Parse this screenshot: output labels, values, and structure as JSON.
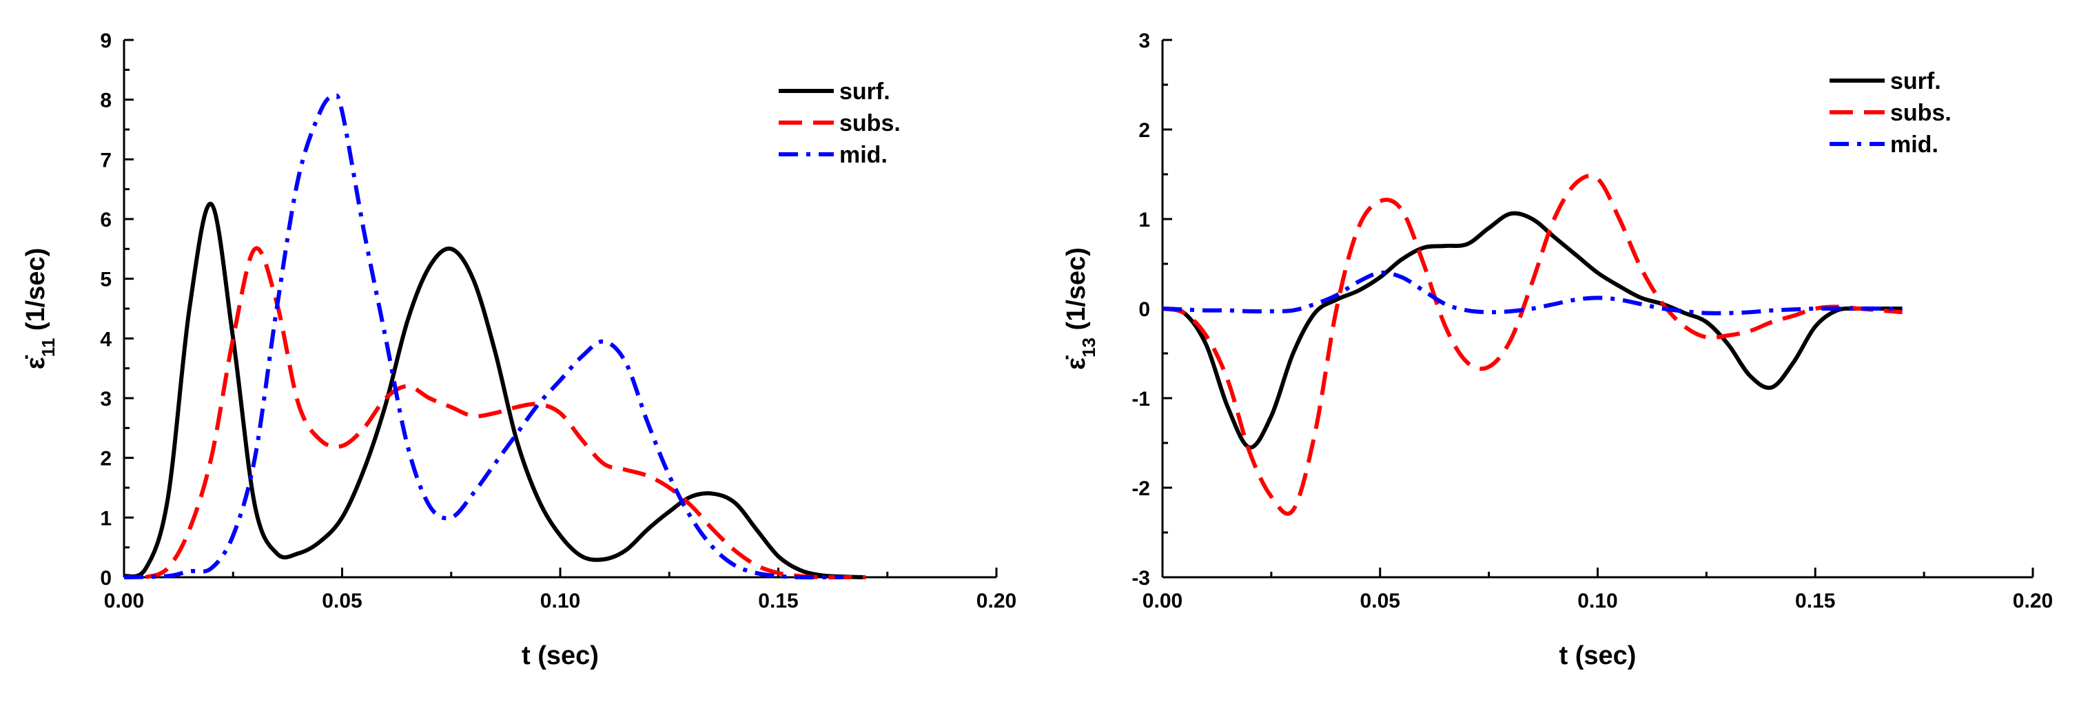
{
  "chart_data": [
    {
      "type": "line",
      "id": "left",
      "xlabel": "t (sec)",
      "ylabel": {
        "prefix": "ε̇",
        "sub": "11",
        "suffix": " (1/sec)"
      },
      "xlim": [
        0,
        0.2
      ],
      "ylim": [
        0,
        9
      ],
      "xticks": [
        0,
        0.05,
        0.1,
        0.15,
        0.2
      ],
      "xtick_labels": [
        "0.00",
        "0.05",
        "0.10",
        "0.15",
        "0.20"
      ],
      "yticks": [
        0,
        1,
        2,
        3,
        4,
        5,
        6,
        7,
        8,
        9
      ],
      "ytick_labels": [
        "0",
        "1",
        "2",
        "3",
        "4",
        "5",
        "6",
        "7",
        "8",
        "9"
      ],
      "legend_position": "top-right",
      "series": [
        {
          "name": "surf.",
          "color": "#000000",
          "dash": "solid",
          "x": [
            0,
            0.005,
            0.01,
            0.015,
            0.02,
            0.025,
            0.03,
            0.035,
            0.04,
            0.045,
            0.05,
            0.055,
            0.06,
            0.065,
            0.07,
            0.075,
            0.08,
            0.085,
            0.09,
            0.095,
            0.1,
            0.105,
            0.11,
            0.115,
            0.12,
            0.125,
            0.13,
            0.135,
            0.14,
            0.145,
            0.15,
            0.155,
            0.16,
            0.165,
            0.17
          ],
          "y": [
            0.02,
            0.15,
            1.3,
            4.5,
            6.25,
            4.0,
            1.2,
            0.4,
            0.4,
            0.6,
            1.0,
            1.8,
            2.9,
            4.3,
            5.2,
            5.5,
            5.0,
            3.8,
            2.3,
            1.3,
            0.7,
            0.35,
            0.3,
            0.45,
            0.8,
            1.1,
            1.35,
            1.4,
            1.25,
            0.8,
            0.35,
            0.12,
            0.03,
            0.01,
            0.0
          ]
        },
        {
          "name": "subs.",
          "color": "#ff0000",
          "dash": "dashed",
          "x": [
            0.005,
            0.01,
            0.015,
            0.02,
            0.025,
            0.03,
            0.035,
            0.04,
            0.045,
            0.05,
            0.055,
            0.06,
            0.065,
            0.07,
            0.075,
            0.08,
            0.085,
            0.09,
            0.095,
            0.1,
            0.105,
            0.11,
            0.115,
            0.12,
            0.125,
            0.13,
            0.135,
            0.14,
            0.145,
            0.15,
            0.155,
            0.16,
            0.165,
            0.17
          ],
          "y": [
            0.0,
            0.15,
            0.8,
            2.0,
            4.0,
            5.5,
            4.6,
            2.9,
            2.3,
            2.2,
            2.5,
            3.0,
            3.2,
            3.0,
            2.85,
            2.7,
            2.75,
            2.85,
            2.9,
            2.75,
            2.3,
            1.9,
            1.8,
            1.7,
            1.5,
            1.2,
            0.8,
            0.45,
            0.2,
            0.07,
            0.02,
            0.0,
            0.0,
            0.0
          ]
        },
        {
          "name": "mid.",
          "color": "#0000ff",
          "dash": "dashdot",
          "x": [
            0,
            0.01,
            0.015,
            0.02,
            0.025,
            0.03,
            0.035,
            0.04,
            0.045,
            0.048,
            0.05,
            0.055,
            0.06,
            0.065,
            0.07,
            0.075,
            0.08,
            0.085,
            0.09,
            0.095,
            0.1,
            0.105,
            0.11,
            0.115,
            0.12,
            0.125,
            0.13,
            0.135,
            0.14,
            0.145,
            0.15,
            0.155,
            0.16,
            0.165
          ],
          "y": [
            0.0,
            0.02,
            0.1,
            0.15,
            0.7,
            2.0,
            4.5,
            6.7,
            7.8,
            8.05,
            7.8,
            5.8,
            4.0,
            2.2,
            1.2,
            1.0,
            1.4,
            1.9,
            2.4,
            2.9,
            3.3,
            3.7,
            3.95,
            3.6,
            2.6,
            1.7,
            1.0,
            0.5,
            0.2,
            0.07,
            0.02,
            0.0,
            0.0,
            0.0
          ]
        }
      ]
    },
    {
      "type": "line",
      "id": "right",
      "xlabel": "t (sec)",
      "ylabel": {
        "prefix": "ε̇",
        "sub": "13",
        "suffix": " (1/sec)"
      },
      "xlim": [
        0,
        0.2
      ],
      "ylim": [
        -3,
        3
      ],
      "xticks": [
        0,
        0.05,
        0.1,
        0.15,
        0.2
      ],
      "xtick_labels": [
        "0.00",
        "0.05",
        "0.10",
        "0.15",
        "0.20"
      ],
      "yticks": [
        -3,
        -2,
        -1,
        0,
        1,
        2,
        3
      ],
      "ytick_labels": [
        "-3",
        "-2",
        "-1",
        "0",
        "1",
        "2",
        "3"
      ],
      "legend_position": "top-right",
      "series": [
        {
          "name": "surf.",
          "color": "#000000",
          "dash": "solid",
          "x": [
            0,
            0.005,
            0.01,
            0.015,
            0.02,
            0.025,
            0.03,
            0.035,
            0.04,
            0.045,
            0.05,
            0.055,
            0.06,
            0.065,
            0.07,
            0.075,
            0.08,
            0.085,
            0.09,
            0.095,
            0.1,
            0.105,
            0.11,
            0.115,
            0.12,
            0.125,
            0.13,
            0.135,
            0.14,
            0.145,
            0.15,
            0.155,
            0.16,
            0.165,
            0.17
          ],
          "y": [
            0.0,
            -0.05,
            -0.4,
            -1.1,
            -1.55,
            -1.2,
            -0.5,
            -0.05,
            0.1,
            0.2,
            0.35,
            0.55,
            0.68,
            0.7,
            0.72,
            0.9,
            1.06,
            1.0,
            0.8,
            0.6,
            0.4,
            0.25,
            0.12,
            0.05,
            -0.05,
            -0.15,
            -0.4,
            -0.75,
            -0.88,
            -0.6,
            -0.2,
            -0.02,
            0.0,
            0.0,
            0.0
          ]
        },
        {
          "name": "subs.",
          "color": "#ff0000",
          "dash": "dashed",
          "x": [
            0,
            0.005,
            0.01,
            0.015,
            0.02,
            0.025,
            0.03,
            0.035,
            0.04,
            0.045,
            0.05,
            0.055,
            0.06,
            0.065,
            0.07,
            0.075,
            0.08,
            0.085,
            0.09,
            0.095,
            0.1,
            0.105,
            0.11,
            0.115,
            0.12,
            0.125,
            0.13,
            0.135,
            0.14,
            0.145,
            0.15,
            0.155,
            0.16,
            0.165,
            0.17
          ],
          "y": [
            0.0,
            -0.05,
            -0.3,
            -0.8,
            -1.6,
            -2.1,
            -2.25,
            -1.4,
            0.0,
            0.9,
            1.2,
            1.1,
            0.5,
            -0.2,
            -0.6,
            -0.65,
            -0.35,
            0.3,
            1.0,
            1.4,
            1.45,
            1.0,
            0.45,
            0.05,
            -0.2,
            -0.32,
            -0.3,
            -0.25,
            -0.15,
            -0.08,
            0.0,
            0.02,
            0.0,
            -0.02,
            -0.04
          ]
        },
        {
          "name": "mid.",
          "color": "#0000ff",
          "dash": "dashdot",
          "x": [
            0,
            0.005,
            0.01,
            0.015,
            0.02,
            0.025,
            0.03,
            0.035,
            0.04,
            0.045,
            0.05,
            0.055,
            0.06,
            0.065,
            0.07,
            0.075,
            0.08,
            0.085,
            0.09,
            0.095,
            0.1,
            0.105,
            0.11,
            0.115,
            0.12,
            0.125,
            0.13,
            0.135,
            0.14,
            0.145,
            0.15,
            0.155,
            0.16,
            0.165,
            0.17
          ],
          "y": [
            0.0,
            -0.01,
            -0.02,
            -0.02,
            -0.03,
            -0.03,
            -0.02,
            0.05,
            0.15,
            0.3,
            0.4,
            0.35,
            0.2,
            0.05,
            -0.02,
            -0.04,
            -0.03,
            0.0,
            0.05,
            0.1,
            0.12,
            0.1,
            0.05,
            0.0,
            -0.03,
            -0.05,
            -0.05,
            -0.04,
            -0.02,
            -0.01,
            0.0,
            0.0,
            0.0,
            0.0,
            0.0
          ]
        }
      ]
    }
  ]
}
